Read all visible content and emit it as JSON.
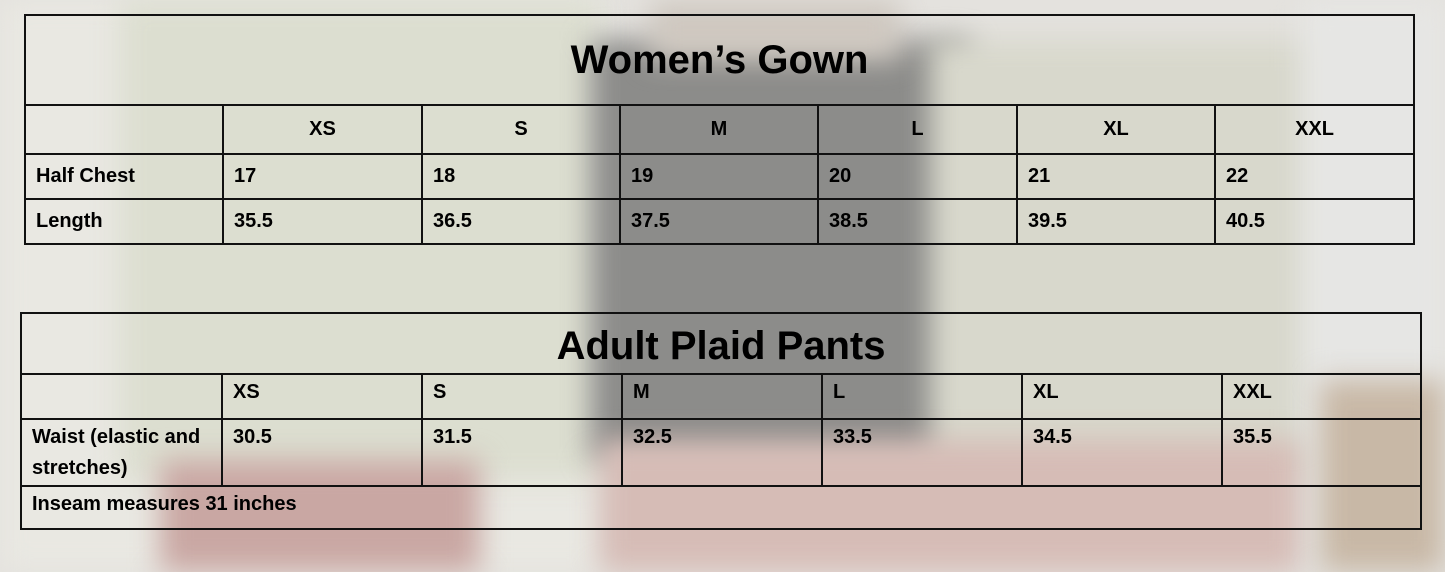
{
  "womens_gown": {
    "title": "Women’s Gown",
    "sizes": [
      "XS",
      "S",
      "M",
      "L",
      "XL",
      "XXL"
    ],
    "rows": [
      {
        "label": "Half Chest",
        "values": [
          "17",
          "18",
          "19",
          "20",
          "21",
          "22"
        ]
      },
      {
        "label": "Length",
        "values": [
          "35.5",
          "36.5",
          "37.5",
          "38.5",
          "39.5",
          "40.5"
        ]
      }
    ]
  },
  "adult_plaid_pants": {
    "title": "Adult Plaid Pants",
    "sizes": [
      "XS",
      "S",
      "M",
      "L",
      "XL",
      "XXL"
    ],
    "rows": [
      {
        "label": "Waist (elastic and stretches)",
        "values": [
          "30.5",
          "31.5",
          "32.5",
          "33.5",
          "34.5",
          "35.5"
        ]
      }
    ],
    "note": "Inseam measures 31 inches"
  }
}
